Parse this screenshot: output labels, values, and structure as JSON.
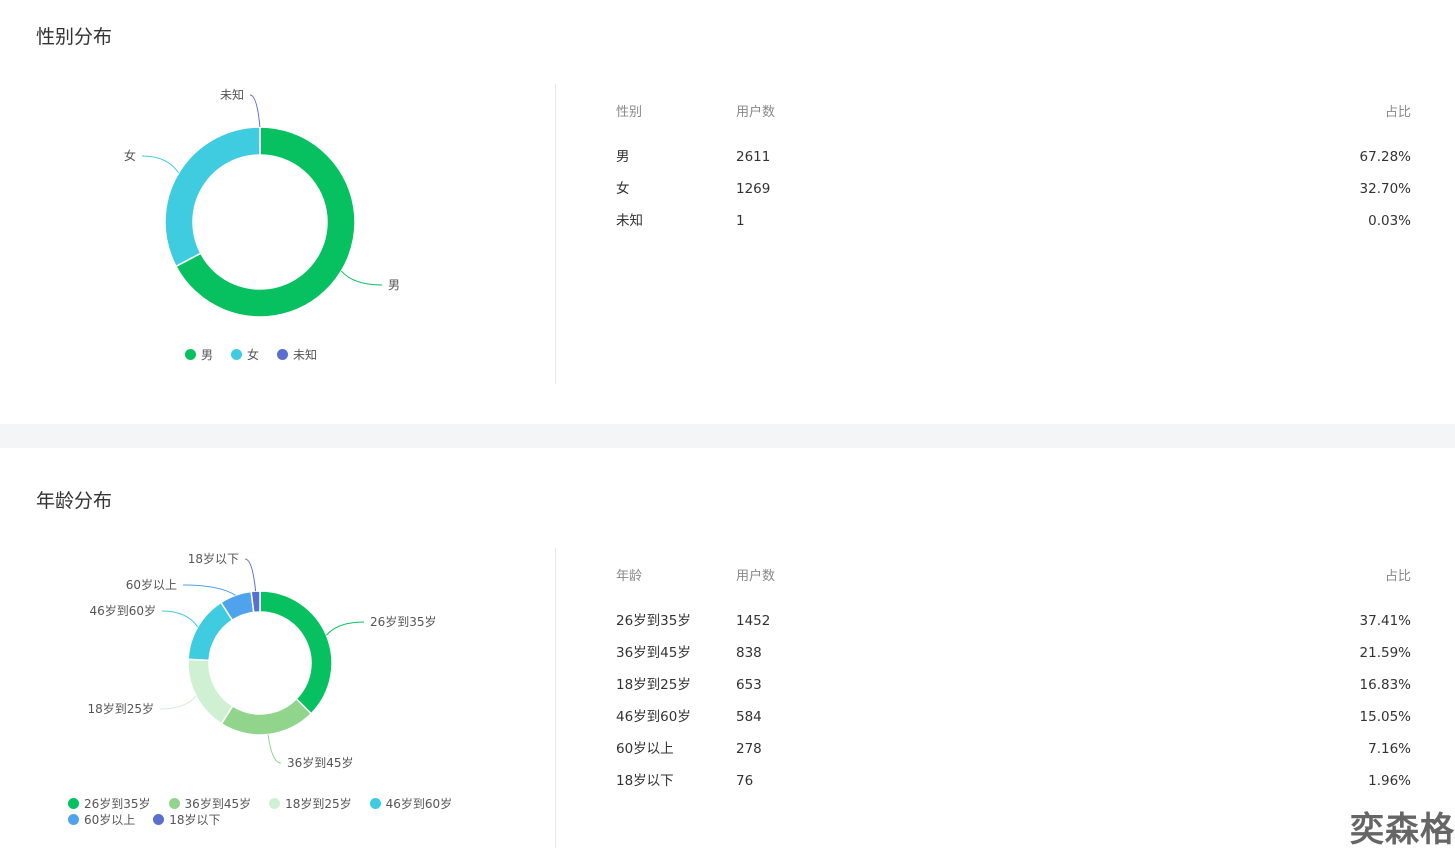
{
  "watermark": "奕森格",
  "gender": {
    "title": "性别分布",
    "table": {
      "headers": [
        "性别",
        "用户数",
        "占比"
      ],
      "rows": [
        [
          "男",
          "2611",
          "67.28%"
        ],
        [
          "女",
          "1269",
          "32.70%"
        ],
        [
          "未知",
          "1",
          "0.03%"
        ]
      ]
    }
  },
  "age": {
    "title": "年龄分布",
    "table": {
      "headers": [
        "年龄",
        "用户数",
        "占比"
      ],
      "rows": [
        [
          "26岁到35岁",
          "1452",
          "37.41%"
        ],
        [
          "36岁到45岁",
          "838",
          "21.59%"
        ],
        [
          "18岁到25岁",
          "653",
          "16.83%"
        ],
        [
          "46岁到60岁",
          "584",
          "15.05%"
        ],
        [
          "60岁以上",
          "278",
          "7.16%"
        ],
        [
          "18岁以下",
          "76",
          "1.96%"
        ]
      ]
    }
  },
  "chart_data": [
    {
      "type": "pie",
      "donut": true,
      "legend": "bottom",
      "categories": [
        "男",
        "女",
        "未知"
      ],
      "values": [
        2611,
        1269,
        1
      ],
      "colors": [
        "#07c160",
        "#40cce0",
        "#5b6fd0"
      ]
    },
    {
      "type": "pie",
      "donut": true,
      "legend": "bottom",
      "categories": [
        "26岁到35岁",
        "36岁到45岁",
        "18岁到25岁",
        "46岁到60岁",
        "60岁以上",
        "18岁以下"
      ],
      "values": [
        1452,
        838,
        653,
        584,
        278,
        76
      ],
      "colors": [
        "#07c160",
        "#91d58c",
        "#d0f0d4",
        "#40cce0",
        "#4fa3ec",
        "#5b6fd0"
      ]
    }
  ]
}
